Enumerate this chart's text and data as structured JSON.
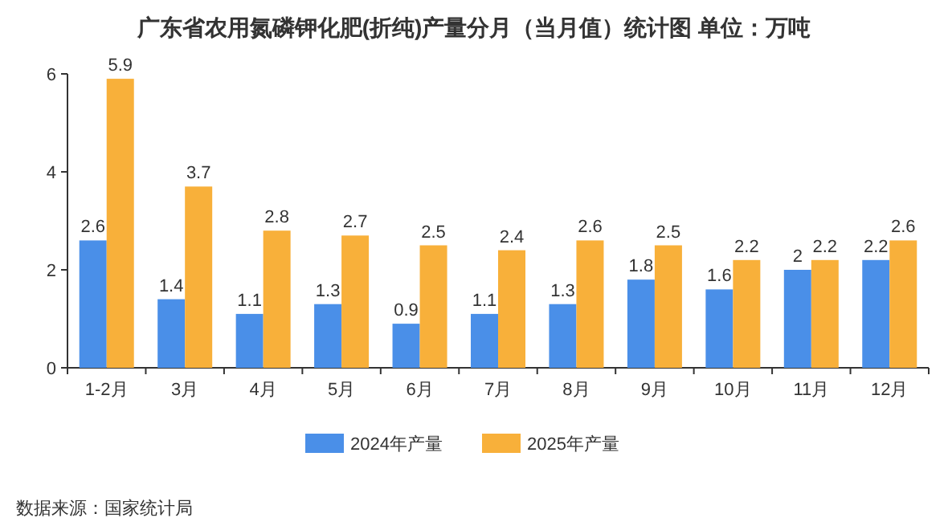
{
  "chart_data": {
    "type": "bar",
    "title": "广东省农用氮磷钾化肥(折纯)产量分月（当月值）统计图 单位：万吨",
    "categories": [
      "1-2月",
      "3月",
      "4月",
      "5月",
      "6月",
      "7月",
      "8月",
      "9月",
      "10月",
      "11月",
      "12月"
    ],
    "series": [
      {
        "name": "2024年产量",
        "color": "#4a8fe8",
        "values": [
          2.6,
          1.4,
          1.1,
          1.3,
          0.9,
          1.1,
          1.3,
          1.8,
          1.6,
          2,
          2.2
        ]
      },
      {
        "name": "2025年产量",
        "color": "#f8b03a",
        "values": [
          5.9,
          3.7,
          2.8,
          2.7,
          2.5,
          2.4,
          2.6,
          2.5,
          2.2,
          2.2,
          2.6
        ]
      }
    ],
    "ylim": [
      0,
      6
    ],
    "yticks": [
      0,
      2,
      4,
      6
    ],
    "data_labels": true,
    "legend": "bottom",
    "annotations": [
      "数据来源：国家统计局"
    ]
  }
}
